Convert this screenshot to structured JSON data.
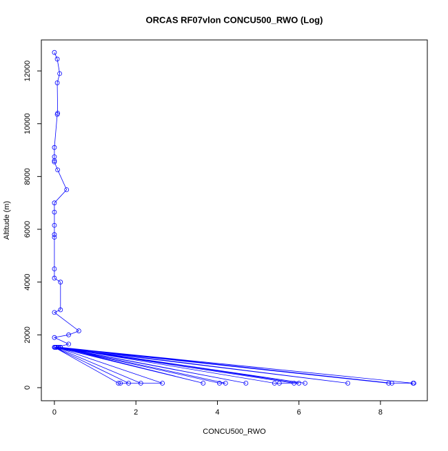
{
  "chart_data": {
    "type": "line",
    "title": "ORCAS RF07vlon CONCU500_RWO (Log)",
    "x_label": "CONCU500_RWO",
    "y_label": "Altitude (m)",
    "series": [
      {
        "color": "#0000ff",
        "x": [
          0,
          0.07,
          0.13,
          0.07,
          0.08,
          0.07,
          0,
          0,
          0,
          0,
          0.08,
          0.3,
          0,
          0,
          0,
          0,
          0,
          0,
          0,
          0.15,
          0.15,
          0,
          0.6,
          0.35,
          0,
          0.35,
          0.05,
          8.8,
          0.1,
          8.2,
          0,
          7.2,
          0.15,
          6.15,
          0.02,
          5.88,
          0.05,
          4.7,
          0.1,
          3.65,
          0.02,
          2.12,
          1.62,
          1.57,
          0,
          1.82,
          2.65,
          0.05,
          4.05,
          4.2,
          0.1,
          5.4,
          5.52,
          6.0,
          0.15,
          8.28,
          8.82
        ],
        "values": [
          12700,
          12450,
          11900,
          11550,
          10400,
          10350,
          9100,
          8750,
          8600,
          8550,
          8250,
          7500,
          7000,
          6650,
          6150,
          5800,
          5700,
          4500,
          4150,
          4000,
          2950,
          2850,
          2150,
          2000,
          1900,
          1650,
          1530,
          170,
          1530,
          170,
          1530,
          170,
          1530,
          170,
          1530,
          170,
          1530,
          170,
          1530,
          170,
          1530,
          170,
          170,
          170,
          1530,
          170,
          170,
          1530,
          170,
          170,
          1530,
          170,
          170,
          170,
          1530,
          170,
          170
        ]
      }
    ],
    "xlim": [
      -0.32,
      9.15
    ],
    "ylim": [
      -496,
      13175
    ],
    "xticks": [
      0,
      2,
      4,
      6,
      8
    ],
    "yticks": [
      0,
      2000,
      4000,
      6000,
      8000,
      10000,
      12000
    ]
  }
}
